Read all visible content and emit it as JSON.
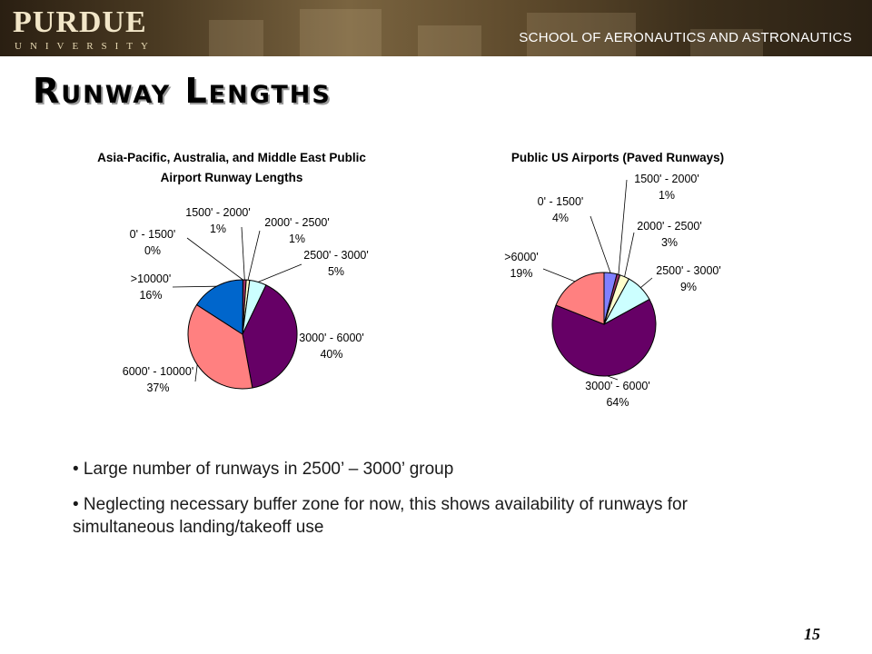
{
  "header": {
    "logo_name": "PURDUE",
    "logo_sub": "UNIVERSITY",
    "school": "SCHOOL OF AERONAUTICS AND ASTRONAUTICS"
  },
  "slide": {
    "title": "Runway Lengths",
    "page_number": "15"
  },
  "bullets": [
    "• Large number of runways in 2500’ – 3000’ group",
    "• Neglecting necessary buffer zone for now, this shows availability of runways for simultaneous landing/takeoff use"
  ],
  "chart_data": [
    {
      "type": "pie",
      "title": [
        "Asia-Pacific, Australia, and Middle East Public",
        "Airport Runway Lengths"
      ],
      "slices": [
        {
          "label": "0' - 1500'",
          "value": 0,
          "pct_label": "0%",
          "color": "#8080ff"
        },
        {
          "label": "1500' - 2000'",
          "value": 1,
          "pct_label": "1%",
          "color": "#993366"
        },
        {
          "label": "2000' - 2500'",
          "value": 1,
          "pct_label": "1%",
          "color": "#ffffcc"
        },
        {
          "label": "2500' - 3000'",
          "value": 5,
          "pct_label": "5%",
          "color": "#ccffff"
        },
        {
          "label": "3000' - 6000'",
          "value": 40,
          "pct_label": "40%",
          "color": "#660066"
        },
        {
          "label": "6000' - 10000'",
          "value": 37,
          "pct_label": "37%",
          "color": "#ff8080"
        },
        {
          "label": ">10000'",
          "value": 16,
          "pct_label": "16%",
          "color": "#0066cc"
        }
      ]
    },
    {
      "type": "pie",
      "title": [
        "Public US Airports (Paved Runways)"
      ],
      "slices": [
        {
          "label": "0' - 1500'",
          "value": 4,
          "pct_label": "4%",
          "color": "#8080ff"
        },
        {
          "label": "1500' - 2000'",
          "value": 1,
          "pct_label": "1%",
          "color": "#993366"
        },
        {
          "label": "2000' - 2500'",
          "value": 3,
          "pct_label": "3%",
          "color": "#ffffcc"
        },
        {
          "label": "2500' - 3000'",
          "value": 9,
          "pct_label": "9%",
          "color": "#ccffff"
        },
        {
          "label": "3000' - 6000'",
          "value": 64,
          "pct_label": "64%",
          "color": "#660066"
        },
        {
          "label": ">6000'",
          "value": 19,
          "pct_label": "19%",
          "color": "#ff8080"
        }
      ]
    }
  ]
}
